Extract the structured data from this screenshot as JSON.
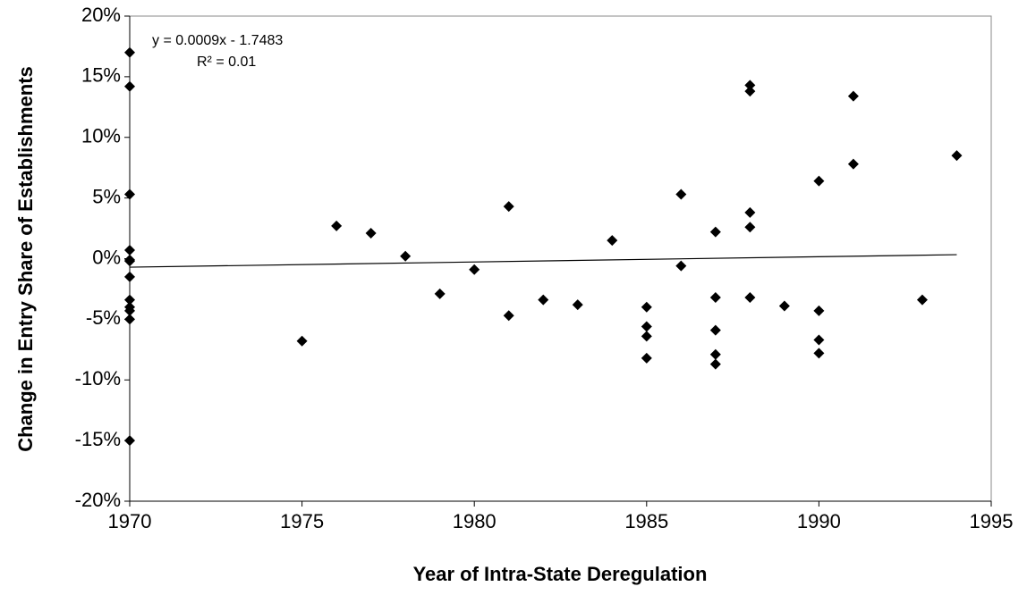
{
  "chart_data": {
    "type": "scatter",
    "xlabel": "Year of Intra-State Deregulation",
    "ylabel": "Change in Entry Share of Establishments",
    "annotations": [
      "y = 0.0009x - 1.7483",
      "R² = 0.01"
    ],
    "trendline": true,
    "color": "#000000",
    "xlim": [
      1970,
      1995
    ],
    "xticks": [
      1970,
      1975,
      1980,
      1985,
      1990,
      1995
    ],
    "ylim": [
      -20,
      20
    ],
    "yticks": [
      {
        "value": -20,
        "label": "-20%"
      },
      {
        "value": -15,
        "label": "-15%"
      },
      {
        "value": -10,
        "label": "-10%"
      },
      {
        "value": -5,
        "label": "-5%"
      },
      {
        "value": 0,
        "label": "0%"
      },
      {
        "value": 5,
        "label": "5%"
      },
      {
        "value": 10,
        "label": "10%"
      },
      {
        "value": 15,
        "label": "15%"
      },
      {
        "value": 20,
        "label": "20%"
      }
    ],
    "x": [
      1970,
      1970,
      1970,
      1970,
      1970,
      1970,
      1970,
      1970,
      1970,
      1970,
      1970,
      1970,
      1975,
      1976,
      1977,
      1978,
      1979,
      1980,
      1981,
      1981,
      1982,
      1983,
      1984,
      1985,
      1985,
      1985,
      1985,
      1986,
      1986,
      1987,
      1987,
      1987,
      1987,
      1987,
      1988,
      1988,
      1988,
      1988,
      1988,
      1989,
      1990,
      1990,
      1990,
      1990,
      1991,
      1991,
      1993,
      1994
    ],
    "values": [
      17.0,
      14.2,
      5.3,
      0.7,
      -0.1,
      -0.2,
      -1.5,
      -3.4,
      -4.0,
      -4.3,
      -5.0,
      -15.0,
      -6.8,
      2.7,
      2.1,
      0.2,
      -2.9,
      -0.9,
      4.3,
      -4.7,
      -3.4,
      -3.8,
      1.5,
      -4.0,
      -5.6,
      -6.4,
      -8.2,
      5.3,
      -0.6,
      2.2,
      -3.2,
      -5.9,
      -7.9,
      -8.7,
      14.3,
      13.8,
      3.8,
      2.6,
      -3.2,
      -3.9,
      6.4,
      -4.3,
      -6.7,
      -7.8,
      13.4,
      7.8,
      -3.4,
      8.5
    ]
  }
}
